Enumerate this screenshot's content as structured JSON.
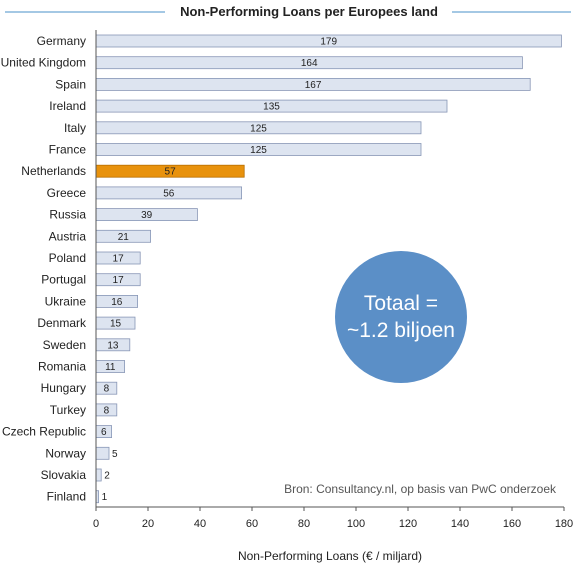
{
  "chart_data": {
    "type": "bar",
    "orientation": "horizontal",
    "title": "Non-Performing Loans per Europees land",
    "xlabel": "Non-Performing Loans (€ / miljard)",
    "ylabel": "",
    "xlim": [
      0,
      180
    ],
    "xticks": [
      0,
      20,
      40,
      60,
      80,
      100,
      120,
      140,
      160,
      180
    ],
    "grid": false,
    "categories": [
      "Germany",
      "United Kingdom",
      "Spain",
      "Ireland",
      "Italy",
      "France",
      "Netherlands",
      "Greece",
      "Russia",
      "Austria",
      "Poland",
      "Portugal",
      "Ukraine",
      "Denmark",
      "Sweden",
      "Romania",
      "Hungary",
      "Turkey",
      "Czech Republic",
      "Norway",
      "Slovakia",
      "Finland"
    ],
    "values": [
      179,
      164,
      167,
      135,
      125,
      125,
      57,
      56,
      39,
      21,
      17,
      17,
      16,
      15,
      13,
      11,
      8,
      8,
      6,
      5,
      2,
      1
    ],
    "highlight": "Netherlands",
    "colors": {
      "bar": "#dde4f0",
      "bar_edge": "#8896b6",
      "highlight": "#e8920d",
      "badge": "#5b8fc7",
      "title_rule": "#4a90c8"
    },
    "annotation": {
      "line1": "Totaal =",
      "line2": "~1.2 biljoen"
    },
    "source": "Bron: Consultancy.nl, op basis van PwC onderzoek"
  }
}
